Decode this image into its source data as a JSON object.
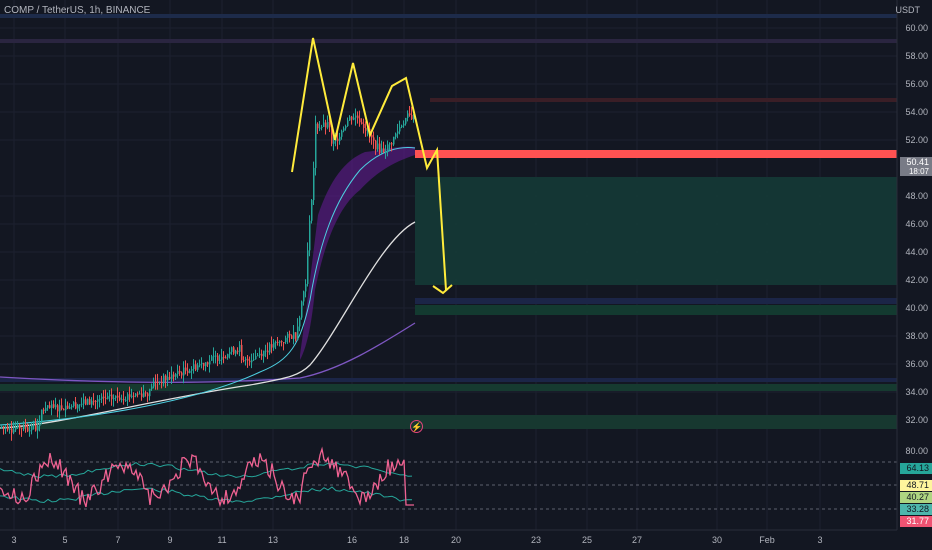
{
  "header": {
    "title": "COMP / TetherUS, 1h, BINANCE"
  },
  "axis": {
    "currency": "USDT",
    "price_ticks": [
      "60.00",
      "58.00",
      "56.00",
      "54.00",
      "52.00",
      "48.00",
      "46.00",
      "44.00",
      "42.00",
      "40.00",
      "38.00",
      "36.00",
      "34.00",
      "32.00"
    ],
    "time_ticks": [
      "3",
      "5",
      "7",
      "9",
      "11",
      "13",
      "16",
      "18",
      "20",
      "23",
      "25",
      "27",
      "30",
      "Feb",
      "3"
    ],
    "oscillator_ticks": [
      "80.00",
      "40.27",
      "33.28",
      "31.77"
    ]
  },
  "current_price": {
    "value": "50.41",
    "countdown": "18:07"
  },
  "oscillator_badges": [
    "64.13",
    "48.71",
    "40.27",
    "33.28",
    "31.77"
  ],
  "colors": {
    "up": "#26a69a",
    "down": "#ef5350",
    "resistance": "#ff5252",
    "annotation": "#ffeb3b",
    "rsi": "#f06292",
    "purple_ma": "#7e57c2",
    "white_ma": "#e0e0e0"
  },
  "alert_icon": "lightning-icon"
}
